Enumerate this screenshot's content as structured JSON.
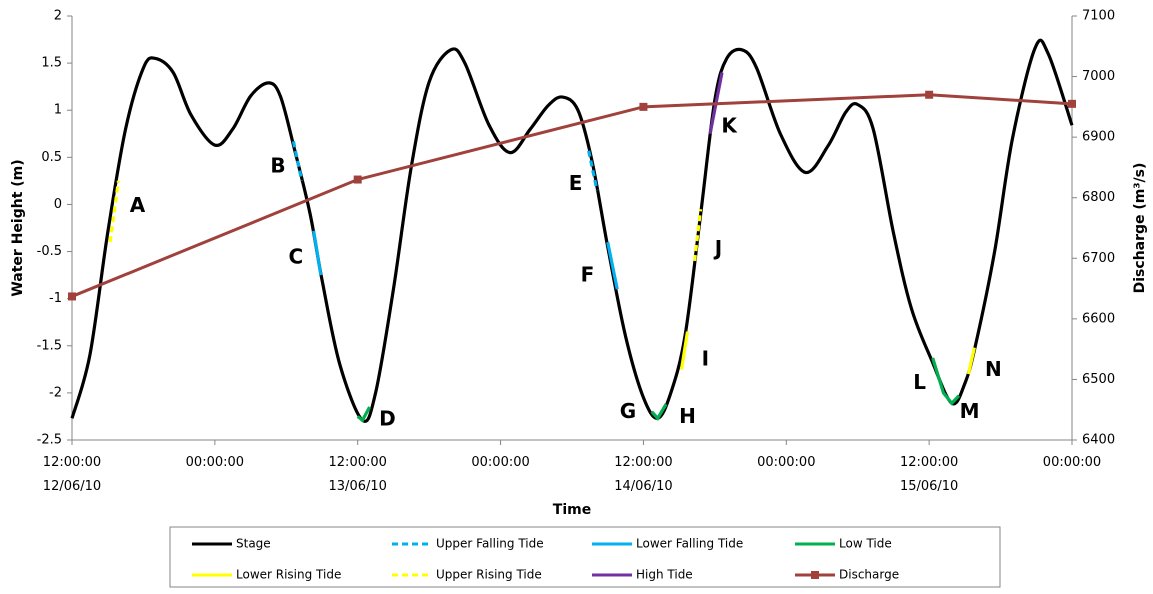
{
  "chart_data": {
    "type": "line",
    "xlabel": "Time",
    "ylabel": "Water Height (m)",
    "y2label": "Discharge (m³/s)",
    "xlim": [
      0,
      84
    ],
    "xticks": [
      {
        "value": 0,
        "label": "12:00:00\n12/06/10"
      },
      {
        "value": 12,
        "label": "00:00:00"
      },
      {
        "value": 24,
        "label": "12:00:00\n13/06/10"
      },
      {
        "value": 36,
        "label": "00:00:00"
      },
      {
        "value": 48,
        "label": "12:00:00\n14/06/10"
      },
      {
        "value": 60,
        "label": "00:00:00"
      },
      {
        "value": 72,
        "label": "12:00:00\n15/06/10"
      },
      {
        "value": 84,
        "label": "00:00:00"
      }
    ],
    "ylim": [
      -2.5,
      2
    ],
    "yticks": [
      2,
      1.5,
      1,
      0.5,
      0,
      -0.5,
      -1,
      -1.5,
      -2,
      -2.5
    ],
    "y2lim": [
      6400,
      7100
    ],
    "y2ticks": [
      7100,
      7000,
      6900,
      6800,
      6700,
      6600,
      6500,
      6400
    ],
    "grid": false,
    "legend": "bottom",
    "series": [
      {
        "name": "Stage",
        "color": "#000000",
        "dash": false,
        "smooth": true,
        "x": [
          0,
          1.5,
          3,
          4.5,
          6,
          7,
          8.5,
          10,
          12,
          13.5,
          15,
          16.5,
          17.5,
          18.7,
          20,
          21,
          22.5,
          24.4,
          25.5,
          27,
          28.5,
          30,
          31.8,
          33,
          35,
          36.8,
          38.5,
          40,
          41.2,
          42.5,
          43.7,
          45,
          46.5,
          48,
          49.2,
          50.3,
          51.5,
          52.8,
          54,
          55,
          56.3,
          57.5,
          59.5,
          61.6,
          63.5,
          65,
          66,
          67.3,
          69,
          70.5,
          72.2,
          73.9,
          75,
          75.9,
          77.5,
          79,
          80.9,
          82,
          84
        ],
        "values": [
          -2.27,
          -1.6,
          -0.3,
          0.8,
          1.45,
          1.55,
          1.4,
          0.95,
          0.63,
          0.8,
          1.15,
          1.29,
          1.15,
          0.58,
          -0.1,
          -0.8,
          -1.7,
          -2.29,
          -2.0,
          -0.9,
          0.4,
          1.3,
          1.64,
          1.5,
          0.85,
          0.55,
          0.8,
          1.05,
          1.14,
          1.0,
          0.45,
          -0.45,
          -1.4,
          -2.05,
          -2.27,
          -2.0,
          -1.39,
          -0.11,
          1.11,
          1.55,
          1.64,
          1.45,
          0.75,
          0.34,
          0.62,
          0.98,
          1.06,
          0.8,
          -0.3,
          -1.1,
          -1.65,
          -2.11,
          -1.9,
          -1.49,
          -0.5,
          0.7,
          1.66,
          1.6,
          0.84
        ]
      },
      {
        "name": "Upper Falling Tide",
        "color": "#00b0f0",
        "dash": true,
        "x": [
          18.6,
          19.3,
          null,
          43.4,
          44.1
        ],
        "values": [
          0.67,
          0.25,
          null,
          0.57,
          0.15
        ]
      },
      {
        "name": "Lower Falling Tide",
        "color": "#00b0f0",
        "dash": false,
        "x": [
          20.3,
          20.9,
          null,
          45.0,
          45.8
        ],
        "values": [
          -0.28,
          -0.75,
          null,
          -0.4,
          -0.9
        ]
      },
      {
        "name": "Low Tide",
        "color": "#00b050",
        "dash": false,
        "x": [
          24.0,
          24.4,
          25.0,
          null,
          48.7,
          49.2,
          49.9,
          null,
          72.3,
          73.2,
          73.9,
          74.5
        ],
        "values": [
          -2.25,
          -2.29,
          -2.15,
          null,
          -2.2,
          -2.27,
          -2.12,
          null,
          -1.63,
          -2.0,
          -2.11,
          -2.03
        ]
      },
      {
        "name": "Lower Rising Tide",
        "color": "#ffff00",
        "dash": false,
        "x": [
          51.2,
          51.7,
          null,
          75.3,
          75.8
        ],
        "values": [
          -1.75,
          -1.35,
          null,
          -1.8,
          -1.52
        ]
      },
      {
        "name": "Upper Rising Tide",
        "color": "#ffff00",
        "dash": true,
        "x": [
          3.2,
          3.9,
          null,
          52.3,
          52.8
        ],
        "values": [
          -0.4,
          0.25,
          null,
          -0.6,
          -0.05
        ]
      },
      {
        "name": "High Tide",
        "color": "#7030a0",
        "dash": false,
        "x": [
          53.6,
          54.6
        ],
        "values": [
          0.75,
          1.4
        ]
      },
      {
        "name": "Discharge",
        "color": "#a0413c",
        "dash": false,
        "axis": "y2",
        "marker": "square",
        "x": [
          0,
          24,
          48,
          72,
          84
        ],
        "values": [
          6637,
          6830,
          6950,
          6970,
          6955
        ]
      }
    ],
    "annotations": [
      {
        "text": "A",
        "x": 5.5,
        "y": -0.02
      },
      {
        "text": "B",
        "x": 17.3,
        "y": 0.4
      },
      {
        "text": "C",
        "x": 18.8,
        "y": -0.57
      },
      {
        "text": "D",
        "x": 26.5,
        "y": -2.29
      },
      {
        "text": "E",
        "x": 42.3,
        "y": 0.21
      },
      {
        "text": "F",
        "x": 43.3,
        "y": -0.76
      },
      {
        "text": "G",
        "x": 46.7,
        "y": -2.21
      },
      {
        "text": "H",
        "x": 51.7,
        "y": -2.26
      },
      {
        "text": "I",
        "x": 53.2,
        "y": -1.65
      },
      {
        "text": "J",
        "x": 54.3,
        "y": -0.48
      },
      {
        "text": "K",
        "x": 55.2,
        "y": 0.82
      },
      {
        "text": "L",
        "x": 71.2,
        "y": -1.9
      },
      {
        "text": "M",
        "x": 75.4,
        "y": -2.21
      },
      {
        "text": "N",
        "x": 77.4,
        "y": -1.76
      }
    ]
  }
}
